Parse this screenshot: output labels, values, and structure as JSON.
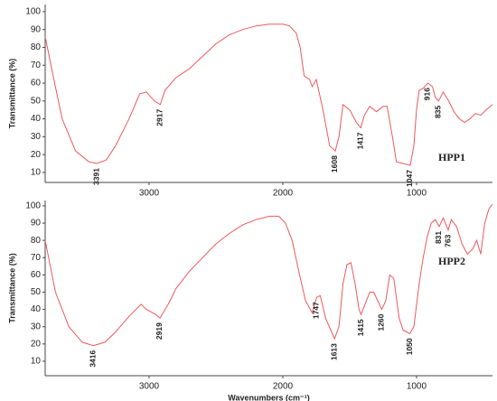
{
  "chart_data": [
    {
      "type": "line",
      "ylabel": "Transmittance (%)",
      "xlim": [
        3777,
        432
      ],
      "ylim": [
        4.4,
        104
      ],
      "xticks": [
        3000,
        2000,
        1000
      ],
      "yticks": [
        10,
        20,
        30,
        40,
        50,
        60,
        70,
        80,
        90,
        100
      ],
      "series": [
        {
          "name": "HPP1",
          "color": "#f0585a",
          "x": [
            3777,
            3720,
            3650,
            3550,
            3450,
            3391,
            3320,
            3250,
            3150,
            3070,
            3020,
            2960,
            2917,
            2880,
            2800,
            2700,
            2600,
            2500,
            2400,
            2300,
            2200,
            2100,
            2000,
            1950,
            1900,
            1870,
            1840,
            1800,
            1780,
            1750,
            1700,
            1650,
            1608,
            1580,
            1550,
            1500,
            1450,
            1417,
            1390,
            1350,
            1300,
            1250,
            1220,
            1180,
            1150,
            1100,
            1047,
            1020,
            1000,
            980,
            950,
            916,
            880,
            860,
            835,
            800,
            760,
            720,
            680,
            640,
            600,
            560,
            520,
            480,
            432
          ],
          "values": [
            86,
            65,
            40,
            22,
            16,
            15,
            17,
            25,
            40,
            54,
            55,
            50,
            48,
            56,
            63,
            68,
            75,
            82,
            87,
            90,
            92,
            93,
            93,
            92,
            88,
            80,
            64,
            62,
            58,
            62,
            45,
            25,
            22,
            30,
            48,
            45,
            38,
            35,
            42,
            47,
            44,
            47,
            47,
            30,
            16,
            15,
            14,
            25,
            45,
            56,
            57,
            60,
            58,
            52,
            50,
            55,
            50,
            44,
            40,
            38,
            40,
            43,
            42,
            45,
            48
          ]
        }
      ],
      "peaks": [
        3391,
        2917,
        1608,
        1417,
        1047,
        916,
        835
      ]
    },
    {
      "type": "line",
      "ylabel": "Transmittance (%)",
      "xlabel": "Wavenumbers (cm⁻¹)",
      "xlim": [
        3777,
        432
      ],
      "ylim": [
        1.6,
        103.1
      ],
      "xticks": [
        3000,
        2000,
        1000
      ],
      "yticks": [
        10,
        20,
        30,
        40,
        50,
        60,
        70,
        80,
        90,
        100
      ],
      "series": [
        {
          "name": "HPP2",
          "color": "#f0585a",
          "x": [
            3777,
            3700,
            3600,
            3500,
            3416,
            3330,
            3250,
            3150,
            3060,
            3020,
            2950,
            2919,
            2880,
            2850,
            2800,
            2700,
            2600,
            2500,
            2400,
            2300,
            2200,
            2100,
            2030,
            1980,
            1930,
            1880,
            1830,
            1780,
            1747,
            1720,
            1680,
            1613,
            1580,
            1550,
            1520,
            1490,
            1460,
            1430,
            1415,
            1390,
            1350,
            1320,
            1290,
            1260,
            1230,
            1200,
            1170,
            1130,
            1100,
            1050,
            1020,
            980,
            950,
            920,
            890,
            860,
            831,
            800,
            763,
            740,
            700,
            660,
            620,
            580,
            550,
            520,
            490,
            460,
            432
          ],
          "values": [
            80,
            50,
            30,
            21,
            19,
            21,
            27,
            36,
            43,
            40,
            37,
            35,
            40,
            44,
            52,
            62,
            70,
            78,
            84,
            89,
            92,
            94,
            94,
            90,
            80,
            62,
            45,
            38,
            47,
            48,
            35,
            23,
            30,
            55,
            66,
            67,
            55,
            40,
            37,
            42,
            50,
            50,
            45,
            40,
            45,
            60,
            58,
            35,
            28,
            26,
            30,
            55,
            70,
            82,
            90,
            92,
            88,
            93,
            86,
            92,
            88,
            78,
            72,
            75,
            80,
            72,
            90,
            98,
            101
          ]
        }
      ],
      "peaks": [
        3416,
        2919,
        1747,
        1613,
        1415,
        1260,
        1050,
        831,
        763
      ]
    }
  ]
}
